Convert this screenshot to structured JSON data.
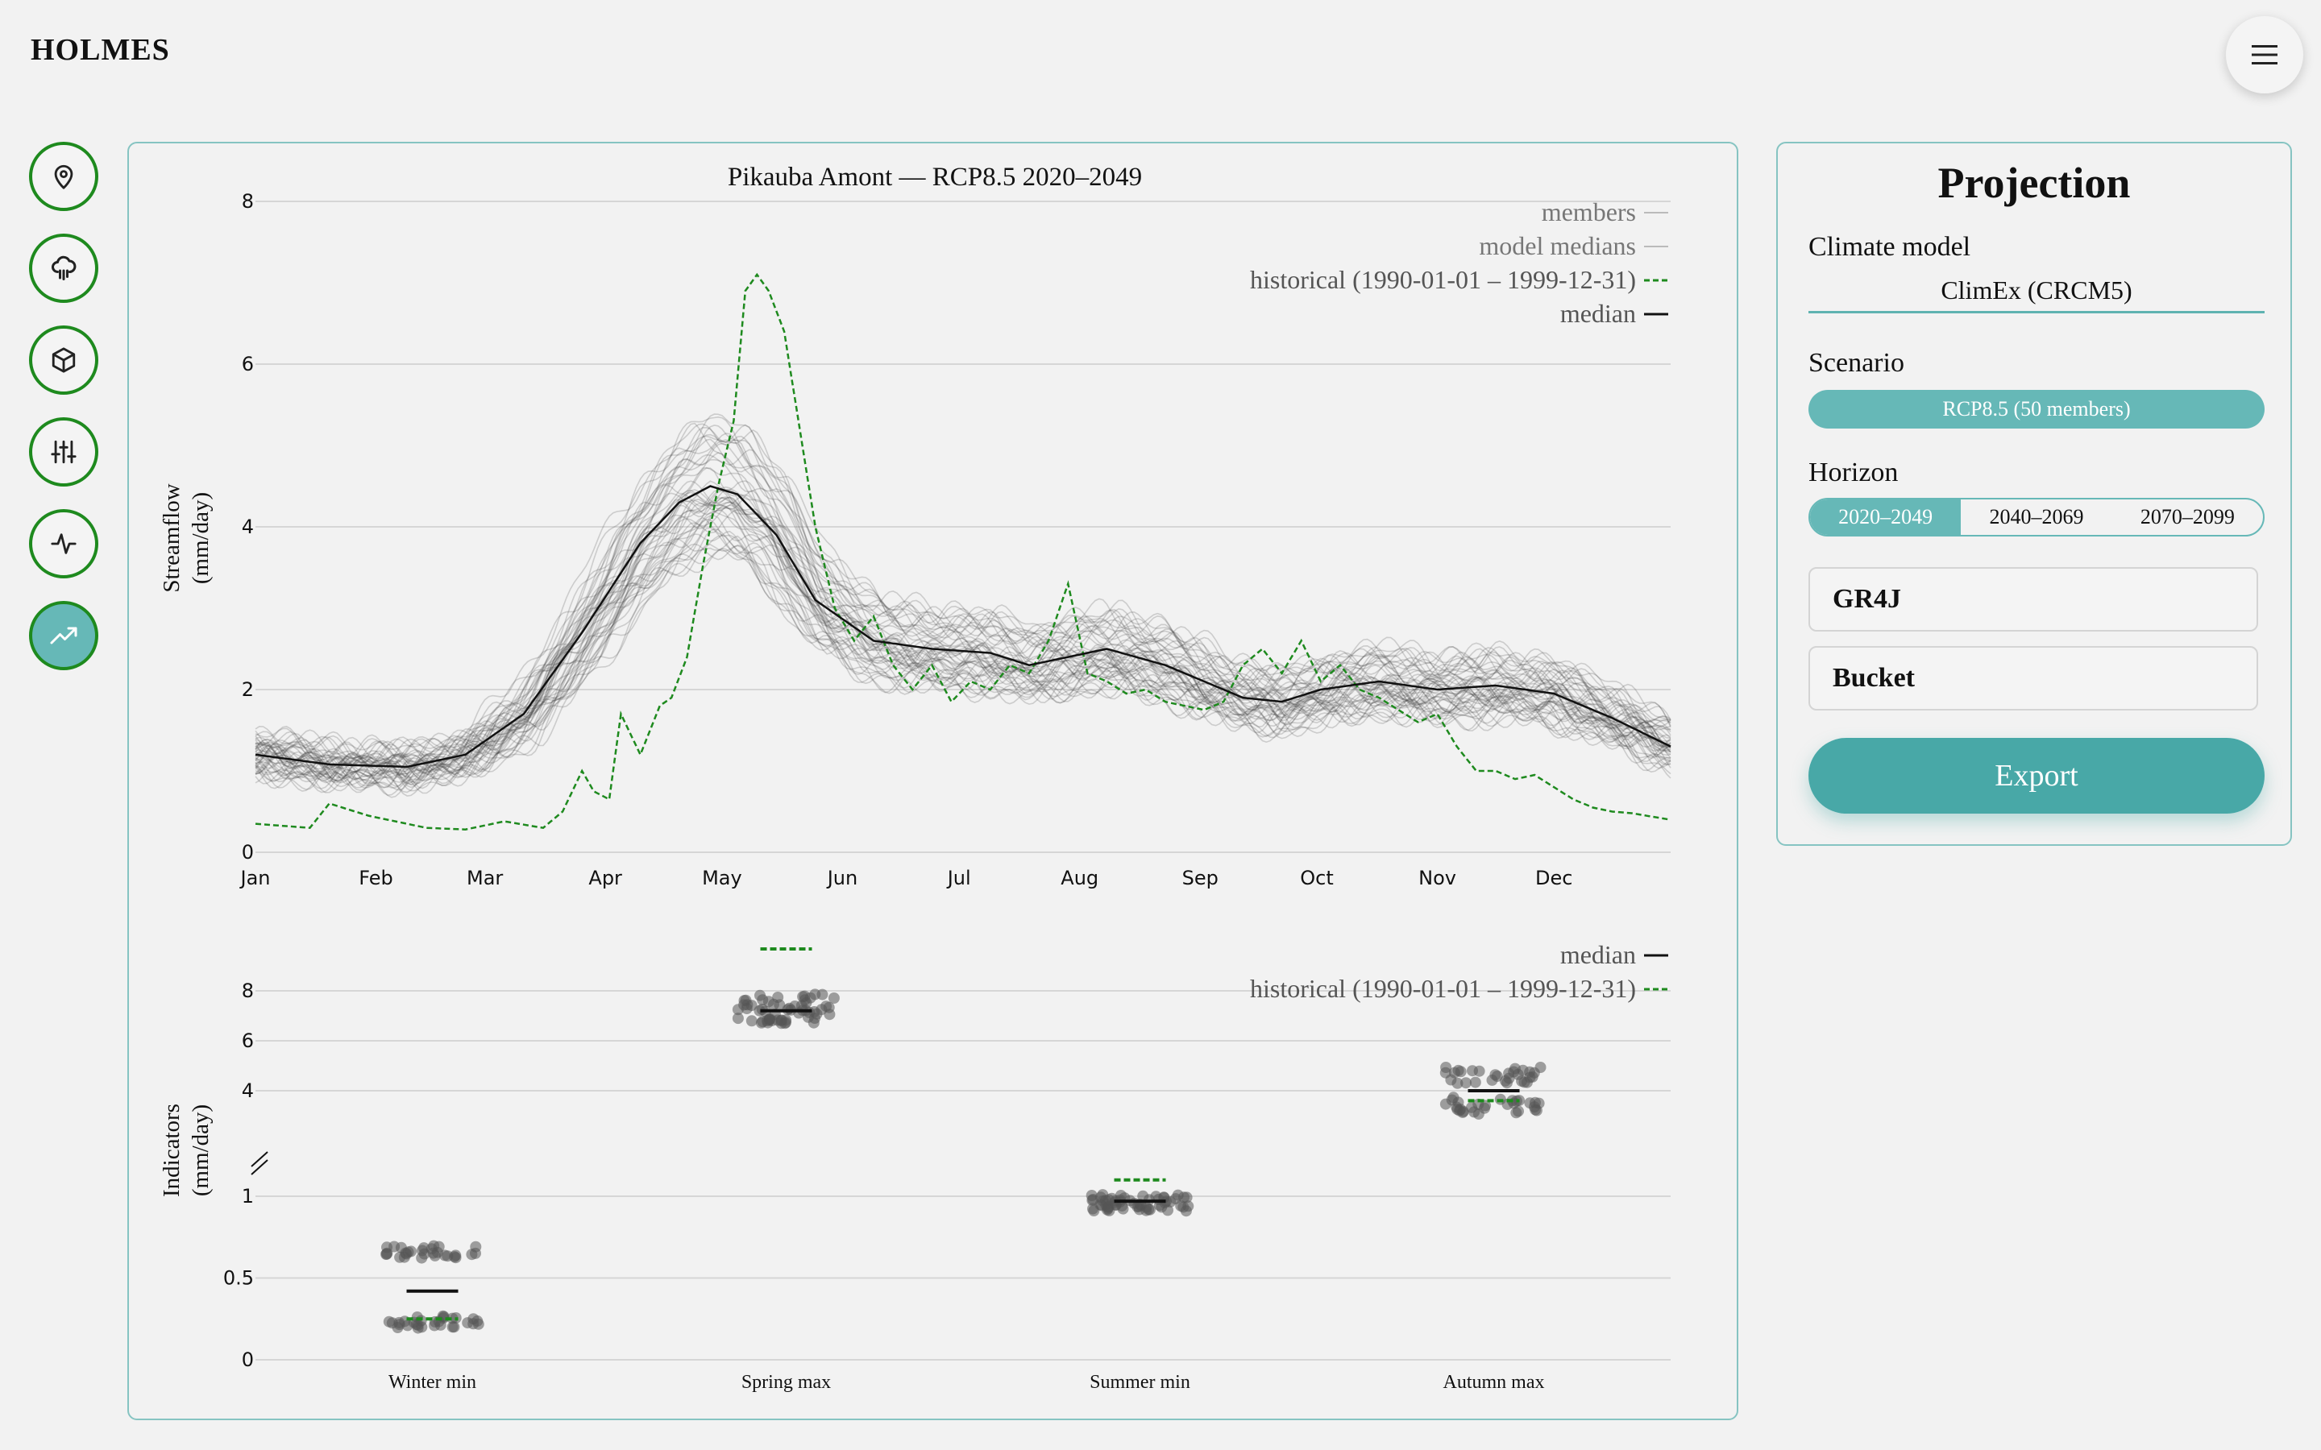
{
  "app": {
    "name": "HOLMES"
  },
  "header": {
    "menu_icon": "hamburger-menu-icon"
  },
  "sidebar": {
    "items": [
      {
        "name": "location",
        "icon": "map-pin-icon",
        "active": false
      },
      {
        "name": "climate",
        "icon": "rain-cloud-icon",
        "active": false
      },
      {
        "name": "model",
        "icon": "cube-icon",
        "active": false
      },
      {
        "name": "calibration",
        "icon": "sliders-icon",
        "active": false
      },
      {
        "name": "simulation",
        "icon": "activity-icon",
        "active": false
      },
      {
        "name": "projection",
        "icon": "trending-up-icon",
        "active": true
      }
    ]
  },
  "panel": {
    "title": "Projection",
    "climate_model_label": "Climate model",
    "climate_model_value": "ClimEx (CRCM5)",
    "scenario_label": "Scenario",
    "scenario_value": "RCP8.5 (50 members)",
    "horizon_label": "Horizon",
    "horizons": [
      "2020–2049",
      "2040–2069",
      "2070–2099"
    ],
    "horizon_selected": "2020–2049",
    "hydro_model": "GR4J",
    "snow_model": "Bucket",
    "export_label": "Export"
  },
  "colors": {
    "accent": "#66b8b7",
    "accent_dark": "#48a8a7",
    "historical": "#1e8a1e",
    "median": "#111111",
    "members": "#9a9a9a"
  },
  "chart_data": [
    {
      "type": "line",
      "title": "Pikauba Amont — RCP8.5 2020–2049",
      "ylabel": "Streamflow",
      "yunit": "(mm/day)",
      "ylim": [
        0,
        8
      ],
      "yticks": [
        "0",
        "2",
        "4",
        "6",
        "8"
      ],
      "xlim": [
        1,
        365
      ],
      "xticks": [
        {
          "label": "Jan",
          "day": 1
        },
        {
          "label": "Feb",
          "day": 32
        },
        {
          "label": "Mar",
          "day": 60
        },
        {
          "label": "Apr",
          "day": 91
        },
        {
          "label": "May",
          "day": 121
        },
        {
          "label": "Jun",
          "day": 152
        },
        {
          "label": "Jul",
          "day": 182
        },
        {
          "label": "Aug",
          "day": 213
        },
        {
          "label": "Sep",
          "day": 244
        },
        {
          "label": "Oct",
          "day": 274
        },
        {
          "label": "Nov",
          "day": 305
        },
        {
          "label": "Dec",
          "day": 335
        }
      ],
      "grid": true,
      "legend": {
        "position": "top-right",
        "entries": [
          "members",
          "model medians",
          "historical (1990-01-01 – 1999-12-31)",
          "median"
        ]
      },
      "median": {
        "x": [
          1,
          20,
          40,
          55,
          70,
          85,
          100,
          110,
          118,
          125,
          135,
          145,
          160,
          175,
          190,
          200,
          210,
          220,
          235,
          245,
          255,
          265,
          275,
          290,
          305,
          320,
          335,
          350,
          365
        ],
        "y": [
          1.2,
          1.08,
          1.05,
          1.2,
          1.7,
          2.7,
          3.8,
          4.3,
          4.5,
          4.4,
          3.9,
          3.1,
          2.6,
          2.5,
          2.45,
          2.3,
          2.4,
          2.5,
          2.3,
          2.1,
          1.9,
          1.85,
          2.0,
          2.1,
          2.0,
          2.05,
          1.95,
          1.65,
          1.3
        ]
      },
      "historical": {
        "x": [
          1,
          15,
          20,
          30,
          45,
          55,
          65,
          75,
          80,
          85,
          88,
          92,
          95,
          100,
          105,
          108,
          112,
          116,
          120,
          124,
          127,
          130,
          133,
          137,
          140,
          145,
          150,
          155,
          160,
          165,
          170,
          175,
          180,
          185,
          190,
          195,
          200,
          205,
          210,
          215,
          220,
          225,
          230,
          235,
          240,
          245,
          250,
          255,
          260,
          265,
          270,
          275,
          280,
          285,
          290,
          295,
          300,
          305,
          310,
          315,
          320,
          325,
          330,
          335,
          340,
          345,
          350,
          355,
          365
        ],
        "y": [
          0.35,
          0.3,
          0.6,
          0.45,
          0.3,
          0.28,
          0.38,
          0.3,
          0.5,
          1.0,
          0.75,
          0.65,
          1.7,
          1.2,
          1.8,
          1.9,
          2.4,
          3.5,
          4.5,
          5.3,
          6.9,
          7.1,
          6.9,
          6.4,
          5.5,
          4.0,
          3.0,
          2.6,
          2.9,
          2.3,
          2.0,
          2.3,
          1.85,
          2.1,
          2.0,
          2.3,
          2.2,
          2.6,
          3.3,
          2.2,
          2.1,
          1.95,
          2.0,
          1.85,
          1.8,
          1.75,
          1.85,
          2.3,
          2.5,
          2.2,
          2.6,
          2.1,
          2.3,
          2.0,
          1.9,
          1.75,
          1.6,
          1.7,
          1.3,
          1.0,
          1.0,
          0.9,
          0.95,
          0.8,
          0.65,
          0.55,
          0.5,
          0.48,
          0.4
        ]
      }
    },
    {
      "type": "scatter",
      "ylabel": "Indicators",
      "yunit": "(mm/day)",
      "categories": [
        "Winter min",
        "Spring max",
        "Summer min",
        "Autumn max"
      ],
      "yticks_lower": [
        "0",
        "0.5",
        "1"
      ],
      "yticks_upper": [
        "4",
        "6",
        "8"
      ],
      "broken_axis": true,
      "legend": {
        "position": "top-right",
        "entries": [
          "median",
          "historical (1990-01-01 – 1999-12-31)"
        ]
      },
      "median": [
        0.42,
        7.2,
        0.97,
        4.0
      ],
      "historical": [
        0.25,
        9.6,
        1.1,
        3.6
      ],
      "member_clusters": [
        {
          "centers": [
            0.66,
            0.23
          ],
          "spread": 0.04
        },
        {
          "centers": [
            7.3
          ],
          "spread": 0.6
        },
        {
          "centers": [
            0.96
          ],
          "spread": 0.05
        },
        {
          "centers": [
            4.6,
            3.4
          ],
          "spread": 0.35
        }
      ]
    }
  ]
}
